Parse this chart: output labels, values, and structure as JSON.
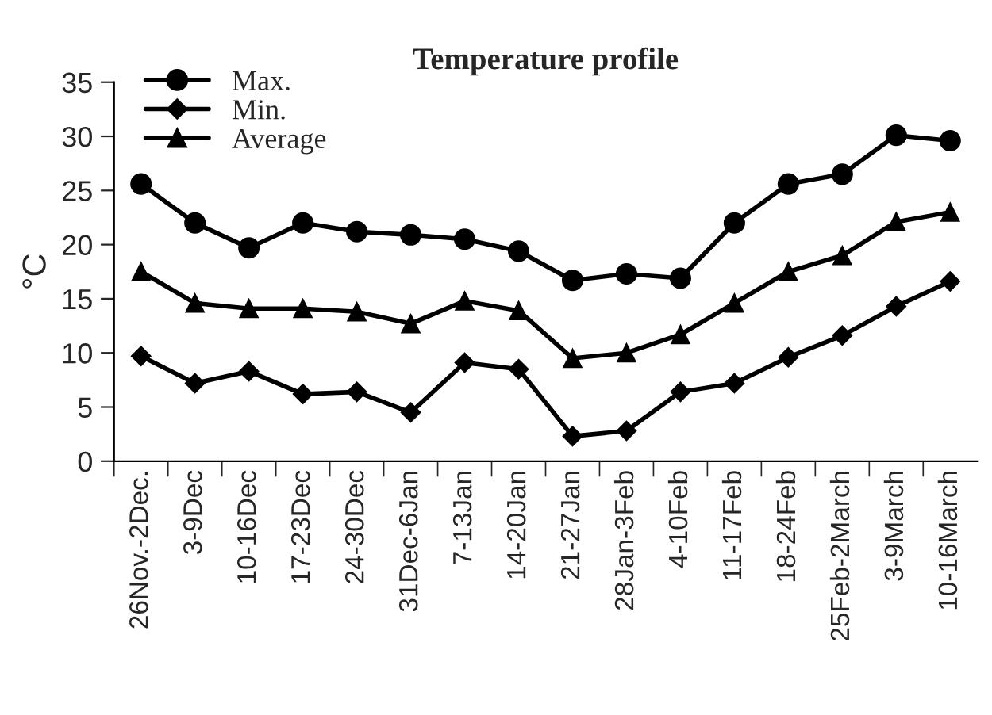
{
  "chart_data": {
    "type": "line",
    "title": "Temperature profile",
    "ylabel": "°C",
    "categories": [
      "26Nov.-2Dec.",
      "3-9Dec",
      "10-16Dec",
      "17-23Dec",
      "24-30Dec",
      "31Dec-6Jan",
      "7-13Jan",
      "14-20Jan",
      "21-27Jan",
      "28Jan-3Feb",
      "4-10Feb",
      "11-17Feb",
      "18-24Feb",
      "25Feb-2March",
      "3-9March",
      "10-16March"
    ],
    "series": [
      {
        "name": "Max.",
        "color": "#000000",
        "marker": "circle",
        "values": [
          25.6,
          22,
          19.7,
          22,
          21.2,
          20.9,
          20.5,
          19.4,
          16.7,
          17.3,
          16.9,
          22,
          25.6,
          26.5,
          30.1,
          29.6
        ]
      },
      {
        "name": "Min.",
        "color": "#000000",
        "marker": "diamond",
        "values": [
          9.7,
          7.2,
          8.3,
          6.2,
          6.4,
          4.5,
          9.1,
          8.5,
          2.3,
          2.8,
          6.4,
          7.2,
          9.6,
          11.6,
          14.3,
          16.6
        ]
      },
      {
        "name": "Average",
        "color": "#000000",
        "marker": "triangle",
        "values": [
          17.5,
          14.6,
          14.1,
          14.1,
          13.8,
          12.7,
          14.8,
          13.9,
          9.5,
          10,
          11.7,
          14.6,
          17.5,
          19,
          22.1,
          23
        ]
      }
    ],
    "ylim": [
      0,
      35
    ],
    "yticks": [
      0,
      5,
      10,
      15,
      20,
      25,
      30,
      35
    ],
    "grid": false,
    "legend": "top left",
    "line_style": "solid"
  }
}
